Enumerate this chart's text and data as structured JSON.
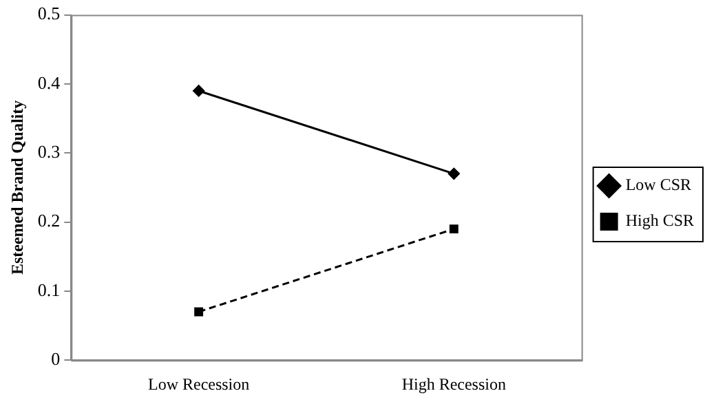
{
  "chart_data": {
    "type": "line",
    "ylabel": "Esteemed Brand Quality",
    "categories": [
      "Low Recession",
      "High Recession"
    ],
    "series": [
      {
        "name": "Low CSR",
        "color": "#000000",
        "values": [
          0.39,
          0.27
        ],
        "marker": "diamond",
        "line_style": "solid"
      },
      {
        "name": "High CSR",
        "color": "#000000",
        "values": [
          0.07,
          0.19
        ],
        "marker": "square",
        "line_style": "dashed"
      }
    ],
    "ylim": [
      0,
      0.5
    ],
    "yticks": [
      0,
      0.1,
      0.2,
      0.3,
      0.4,
      0.5
    ],
    "grid": false,
    "legend": "right"
  }
}
